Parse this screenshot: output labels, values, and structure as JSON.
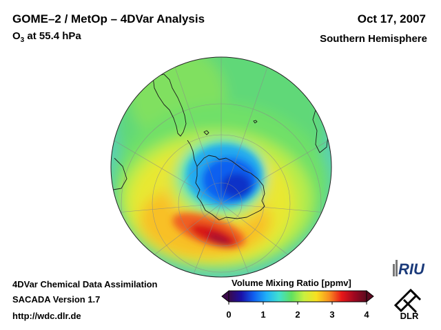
{
  "header": {
    "title": "GOME–2 / MetOp – 4DVar Analysis",
    "species_symbol": "O",
    "species_subscript": "3",
    "level_text": " at 55.4 hPa",
    "date": "Oct 17, 2007",
    "region": "Southern Hemisphere"
  },
  "footer": {
    "line1": "4DVar Chemical Data Assimilation",
    "line2": "SACADA Version 1.7",
    "line3": "http://wdc.dlr.de"
  },
  "colorbar": {
    "label": "Volume Mixing Ratio [ppmv]",
    "ticks": [
      "0",
      "1",
      "2",
      "3",
      "4"
    ],
    "min": 0,
    "max": 4,
    "colors": [
      "#3a0a4a",
      "#1a10a8",
      "#1060f0",
      "#20b0f8",
      "#40e0d0",
      "#60e060",
      "#c8f040",
      "#f8e020",
      "#f89020",
      "#e81818",
      "#a00820",
      "#5a0a20"
    ]
  },
  "map": {
    "projection": "orthographic, south polar",
    "ozone_hole_value_ppmv": 1.0,
    "collar_max_value_ppmv": 3.8
  },
  "logos": {
    "riu_text": "RIU",
    "dlr_text": "DLR"
  }
}
